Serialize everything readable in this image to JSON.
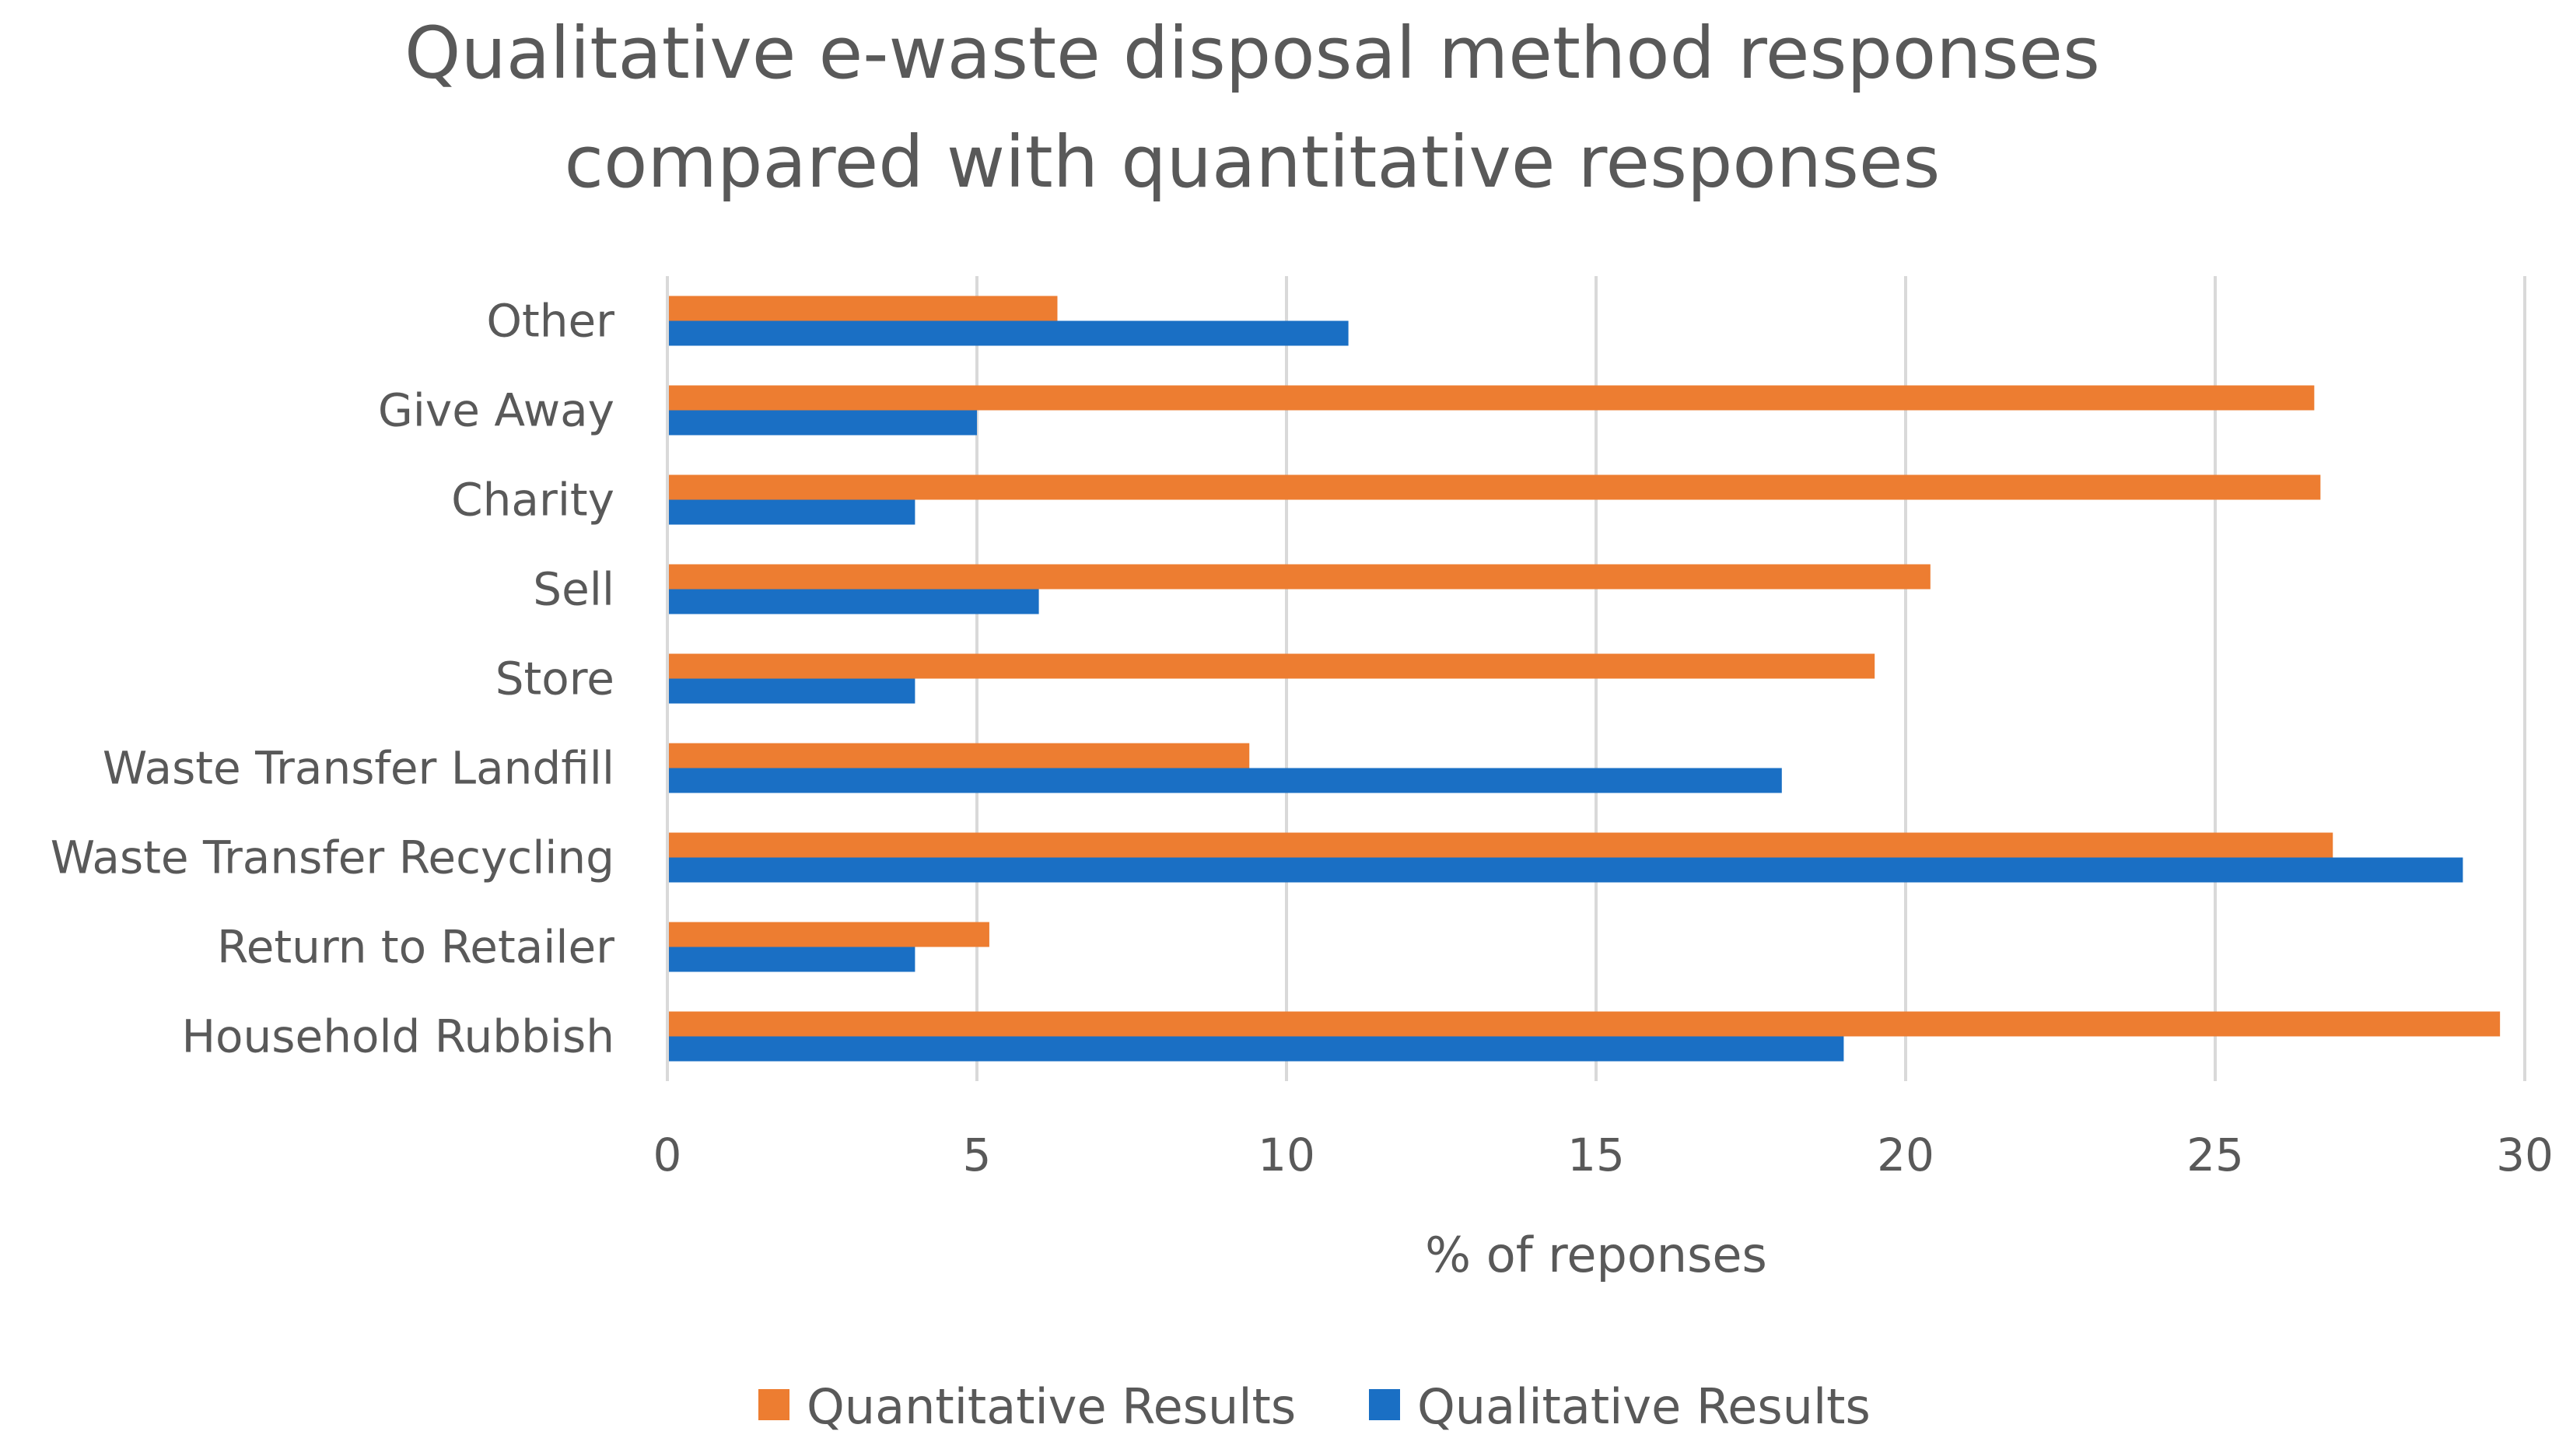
{
  "chart_data": {
    "type": "bar",
    "orientation": "horizontal",
    "title": "Qualitative e-waste disposal method responses compared with quantitative responses",
    "title_lines": [
      "Qualitative e-waste disposal method responses",
      "compared with quantitative responses"
    ],
    "xlabel": "% of reponses",
    "ylabel": "",
    "xlim": [
      0,
      30
    ],
    "xticks": [
      0,
      5,
      10,
      15,
      20,
      25,
      30
    ],
    "grid": true,
    "legend_position": "bottom",
    "categories": [
      "Other",
      "Give Away",
      "Charity",
      "Sell",
      "Store",
      "Waste Transfer Landfill",
      "Waste Transfer Recycling",
      "Return to Retailer",
      "Household Rubbish"
    ],
    "series": [
      {
        "name": "Quantitative Results",
        "color": "#ED7D31",
        "values": [
          6.3,
          26.6,
          26.7,
          20.4,
          19.5,
          9.4,
          26.9,
          5.2,
          29.6
        ]
      },
      {
        "name": "Qualitative Results",
        "color": "#1A6FC4",
        "values": [
          11,
          5,
          4,
          6,
          4,
          18,
          29,
          4,
          19
        ]
      }
    ]
  }
}
